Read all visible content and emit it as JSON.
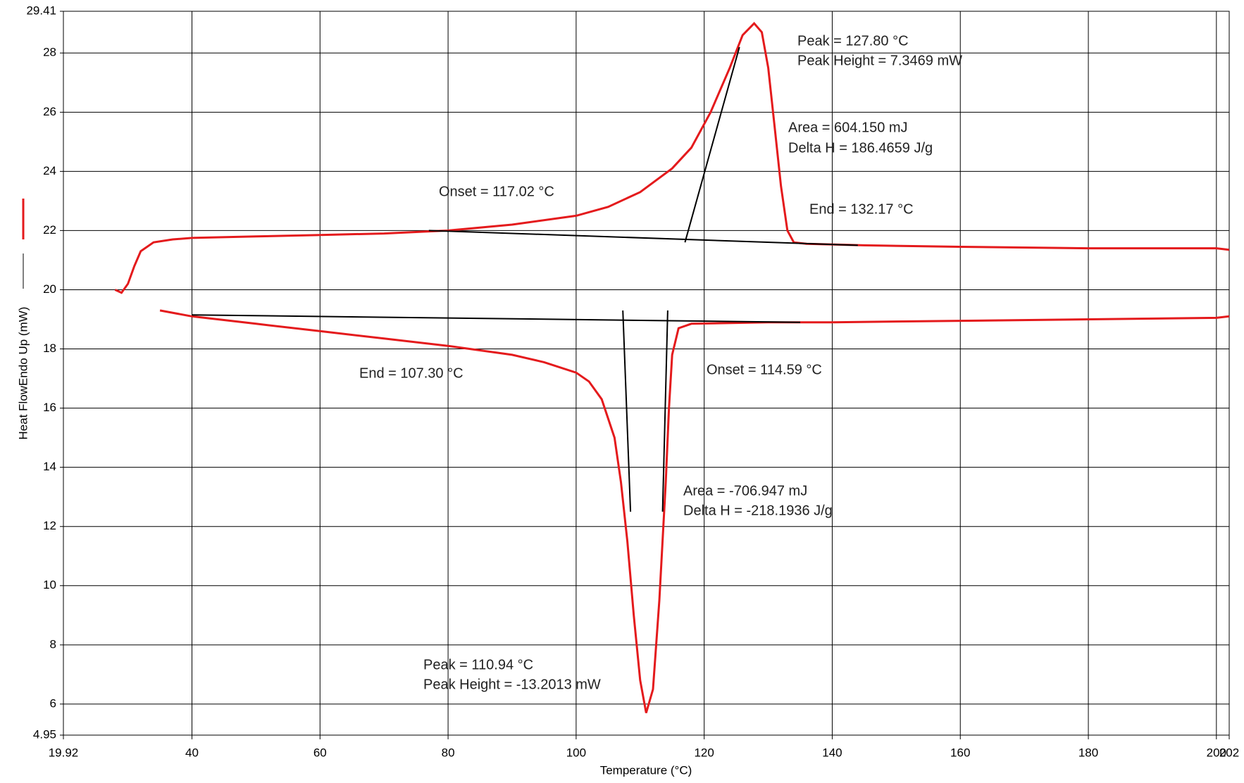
{
  "chart_data": {
    "type": "line",
    "x_label": "Temperature (°C)",
    "y_label": "Heat FlowEndo Up (mW)",
    "xlim": [
      19.92,
      202
    ],
    "xticks": [
      19.92,
      40,
      60,
      80,
      100,
      120,
      140,
      160,
      180,
      200,
      202
    ],
    "ylim": [
      4.95,
      29.41
    ],
    "yticks": [
      4.95,
      6,
      8,
      10,
      12,
      14,
      16,
      18,
      20,
      22,
      24,
      26,
      28,
      29.41
    ],
    "grid": true,
    "series": [
      {
        "color": "#e41a1c",
        "x": [
          28,
          29,
          30,
          31,
          32,
          34,
          37,
          40,
          50,
          60,
          70,
          80,
          90,
          100,
          105,
          110,
          115,
          118,
          121,
          124,
          126,
          127.8,
          129,
          130,
          131,
          132,
          133,
          134,
          136,
          145,
          160,
          180,
          200,
          202
        ],
        "values": [
          20,
          19.9,
          20.2,
          20.8,
          21.3,
          21.6,
          21.7,
          21.75,
          21.8,
          21.85,
          21.9,
          22.0,
          22.2,
          22.5,
          22.8,
          23.3,
          24.1,
          24.8,
          26.0,
          27.5,
          28.6,
          29.0,
          28.7,
          27.5,
          25.5,
          23.5,
          22.0,
          21.6,
          21.55,
          21.5,
          21.45,
          21.4,
          21.4,
          21.35
        ]
      },
      {
        "color": "#e41a1c",
        "x": [
          35,
          40,
          50,
          60,
          70,
          80,
          90,
          95,
          100,
          102,
          104,
          106,
          107,
          108,
          109,
          110,
          110.94,
          112,
          113,
          114,
          114.5,
          115,
          116,
          118,
          130,
          140,
          160,
          180,
          200,
          202
        ],
        "values": [
          19.3,
          19.1,
          18.85,
          18.6,
          18.35,
          18.1,
          17.8,
          17.55,
          17.2,
          16.9,
          16.3,
          15.0,
          13.5,
          11.5,
          9.0,
          6.8,
          5.7,
          6.5,
          9.5,
          13.5,
          16.0,
          17.8,
          18.7,
          18.85,
          18.9,
          18.9,
          18.95,
          19.0,
          19.05,
          19.1
        ]
      },
      {
        "color": "#000000",
        "x": [
          77,
          144
        ],
        "values": [
          22.0,
          21.5
        ]
      },
      {
        "color": "#000000",
        "x": [
          117,
          125.5
        ],
        "values": [
          21.6,
          28.2
        ]
      },
      {
        "color": "#000000",
        "x": [
          40,
          135
        ],
        "values": [
          19.15,
          18.9
        ]
      },
      {
        "color": "#000000",
        "x": [
          107.3,
          108.5
        ],
        "values": [
          19.3,
          12.5
        ]
      },
      {
        "color": "#000000",
        "x": [
          114.3,
          113.5
        ],
        "values": [
          19.3,
          12.5
        ]
      }
    ],
    "annotations": [
      "Peak = 127.80 °C",
      "Peak Height = 7.3469 mW",
      "Area = 604.150 mJ",
      "Delta H = 186.4659 J/g",
      "Onset = 117.02 °C",
      "End = 132.17 °C",
      "End = 107.30 °C",
      "Onset = 114.59 °C",
      "Area = -706.947 mJ",
      "Delta H = -218.1936 J/g",
      "Peak = 110.94 °C",
      "Peak Height = -13.2013 mW"
    ]
  }
}
